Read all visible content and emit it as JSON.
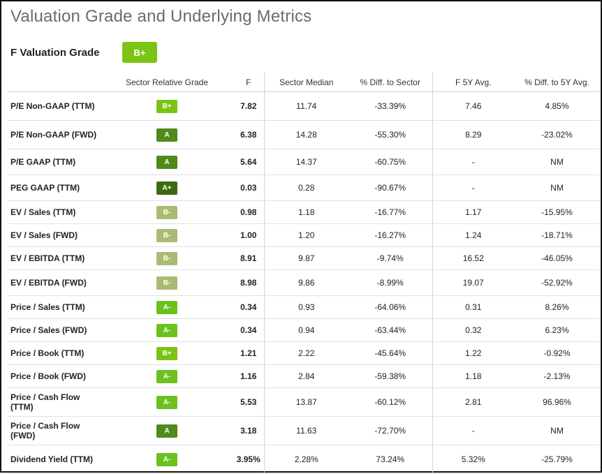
{
  "page_title": "Valuation Grade and Underlying Metrics",
  "valuation_grade": {
    "label": "F Valuation Grade",
    "grade": "B+",
    "color": "#7cc414"
  },
  "columns": {
    "metric": "",
    "sector_grade": "Sector Relative Grade",
    "f": "F",
    "sector_median": "Sector Median",
    "diff_sector": "% Diff. to Sector",
    "f_5y": "F 5Y Avg.",
    "diff_5y": "% Diff. to 5Y Avg."
  },
  "grade_colors": {
    "A+": "#3b6b10",
    "A": "#4f8a1b",
    "A-": "#6bc21d",
    "B+": "#7cc414",
    "B-": "#a9bb72"
  },
  "rows": [
    {
      "name": "P/E Non-GAAP (TTM)",
      "grade": "B+",
      "f": "7.82",
      "sector_median": "11.74",
      "diff_sector": "-33.39%",
      "f_5y": "7.46",
      "diff_5y": "4.85%"
    },
    {
      "name": "P/E Non-GAAP (FWD)",
      "grade": "A",
      "f": "6.38",
      "sector_median": "14.28",
      "diff_sector": "-55.30%",
      "f_5y": "8.29",
      "diff_5y": "-23.02%"
    },
    {
      "name": "P/E GAAP (TTM)",
      "grade": "A",
      "f": "5.64",
      "sector_median": "14.37",
      "diff_sector": "-60.75%",
      "f_5y": "-",
      "diff_5y": "NM"
    },
    {
      "name": "PEG GAAP (TTM)",
      "grade": "A+",
      "f": "0.03",
      "sector_median": "0.28",
      "diff_sector": "-90.67%",
      "f_5y": "-",
      "diff_5y": "NM"
    },
    {
      "name": "EV / Sales (TTM)",
      "grade": "B-",
      "f": "0.98",
      "sector_median": "1.18",
      "diff_sector": "-16.77%",
      "f_5y": "1.17",
      "diff_5y": "-15.95%"
    },
    {
      "name": "EV / Sales (FWD)",
      "grade": "B-",
      "f": "1.00",
      "sector_median": "1.20",
      "diff_sector": "-16.27%",
      "f_5y": "1.24",
      "diff_5y": "-18.71%"
    },
    {
      "name": "EV / EBITDA (TTM)",
      "grade": "B-",
      "f": "8.91",
      "sector_median": "9.87",
      "diff_sector": "-9.74%",
      "f_5y": "16.52",
      "diff_5y": "-46.05%"
    },
    {
      "name": "EV / EBITDA (FWD)",
      "grade": "B-",
      "f": "8.98",
      "sector_median": "9.86",
      "diff_sector": "-8.99%",
      "f_5y": "19.07",
      "diff_5y": "-52.92%"
    },
    {
      "name": "Price / Sales (TTM)",
      "grade": "A-",
      "f": "0.34",
      "sector_median": "0.93",
      "diff_sector": "-64.06%",
      "f_5y": "0.31",
      "diff_5y": "8.26%"
    },
    {
      "name": "Price / Sales (FWD)",
      "grade": "A-",
      "f": "0.34",
      "sector_median": "0.94",
      "diff_sector": "-63.44%",
      "f_5y": "0.32",
      "diff_5y": "6.23%"
    },
    {
      "name": "Price / Book (TTM)",
      "grade": "B+",
      "f": "1.21",
      "sector_median": "2.22",
      "diff_sector": "-45.64%",
      "f_5y": "1.22",
      "diff_5y": "-0.92%"
    },
    {
      "name": "Price / Book (FWD)",
      "grade": "A-",
      "f": "1.16",
      "sector_median": "2.84",
      "diff_sector": "-59.38%",
      "f_5y": "1.18",
      "diff_5y": "-2.13%"
    },
    {
      "name": "Price / Cash Flow (TTM)",
      "grade": "A-",
      "f": "5.53",
      "sector_median": "13.87",
      "diff_sector": "-60.12%",
      "f_5y": "2.81",
      "diff_5y": "96.96%"
    },
    {
      "name": "Price / Cash Flow (FWD)",
      "grade": "A",
      "f": "3.18",
      "sector_median": "11.63",
      "diff_sector": "-72.70%",
      "f_5y": "-",
      "diff_5y": "NM"
    },
    {
      "name": "Dividend Yield (TTM)",
      "grade": "A-",
      "f": "3.95%",
      "sector_median": "2.28%",
      "diff_sector": "73.24%",
      "f_5y": "5.32%",
      "diff_5y": "-25.79%"
    }
  ]
}
